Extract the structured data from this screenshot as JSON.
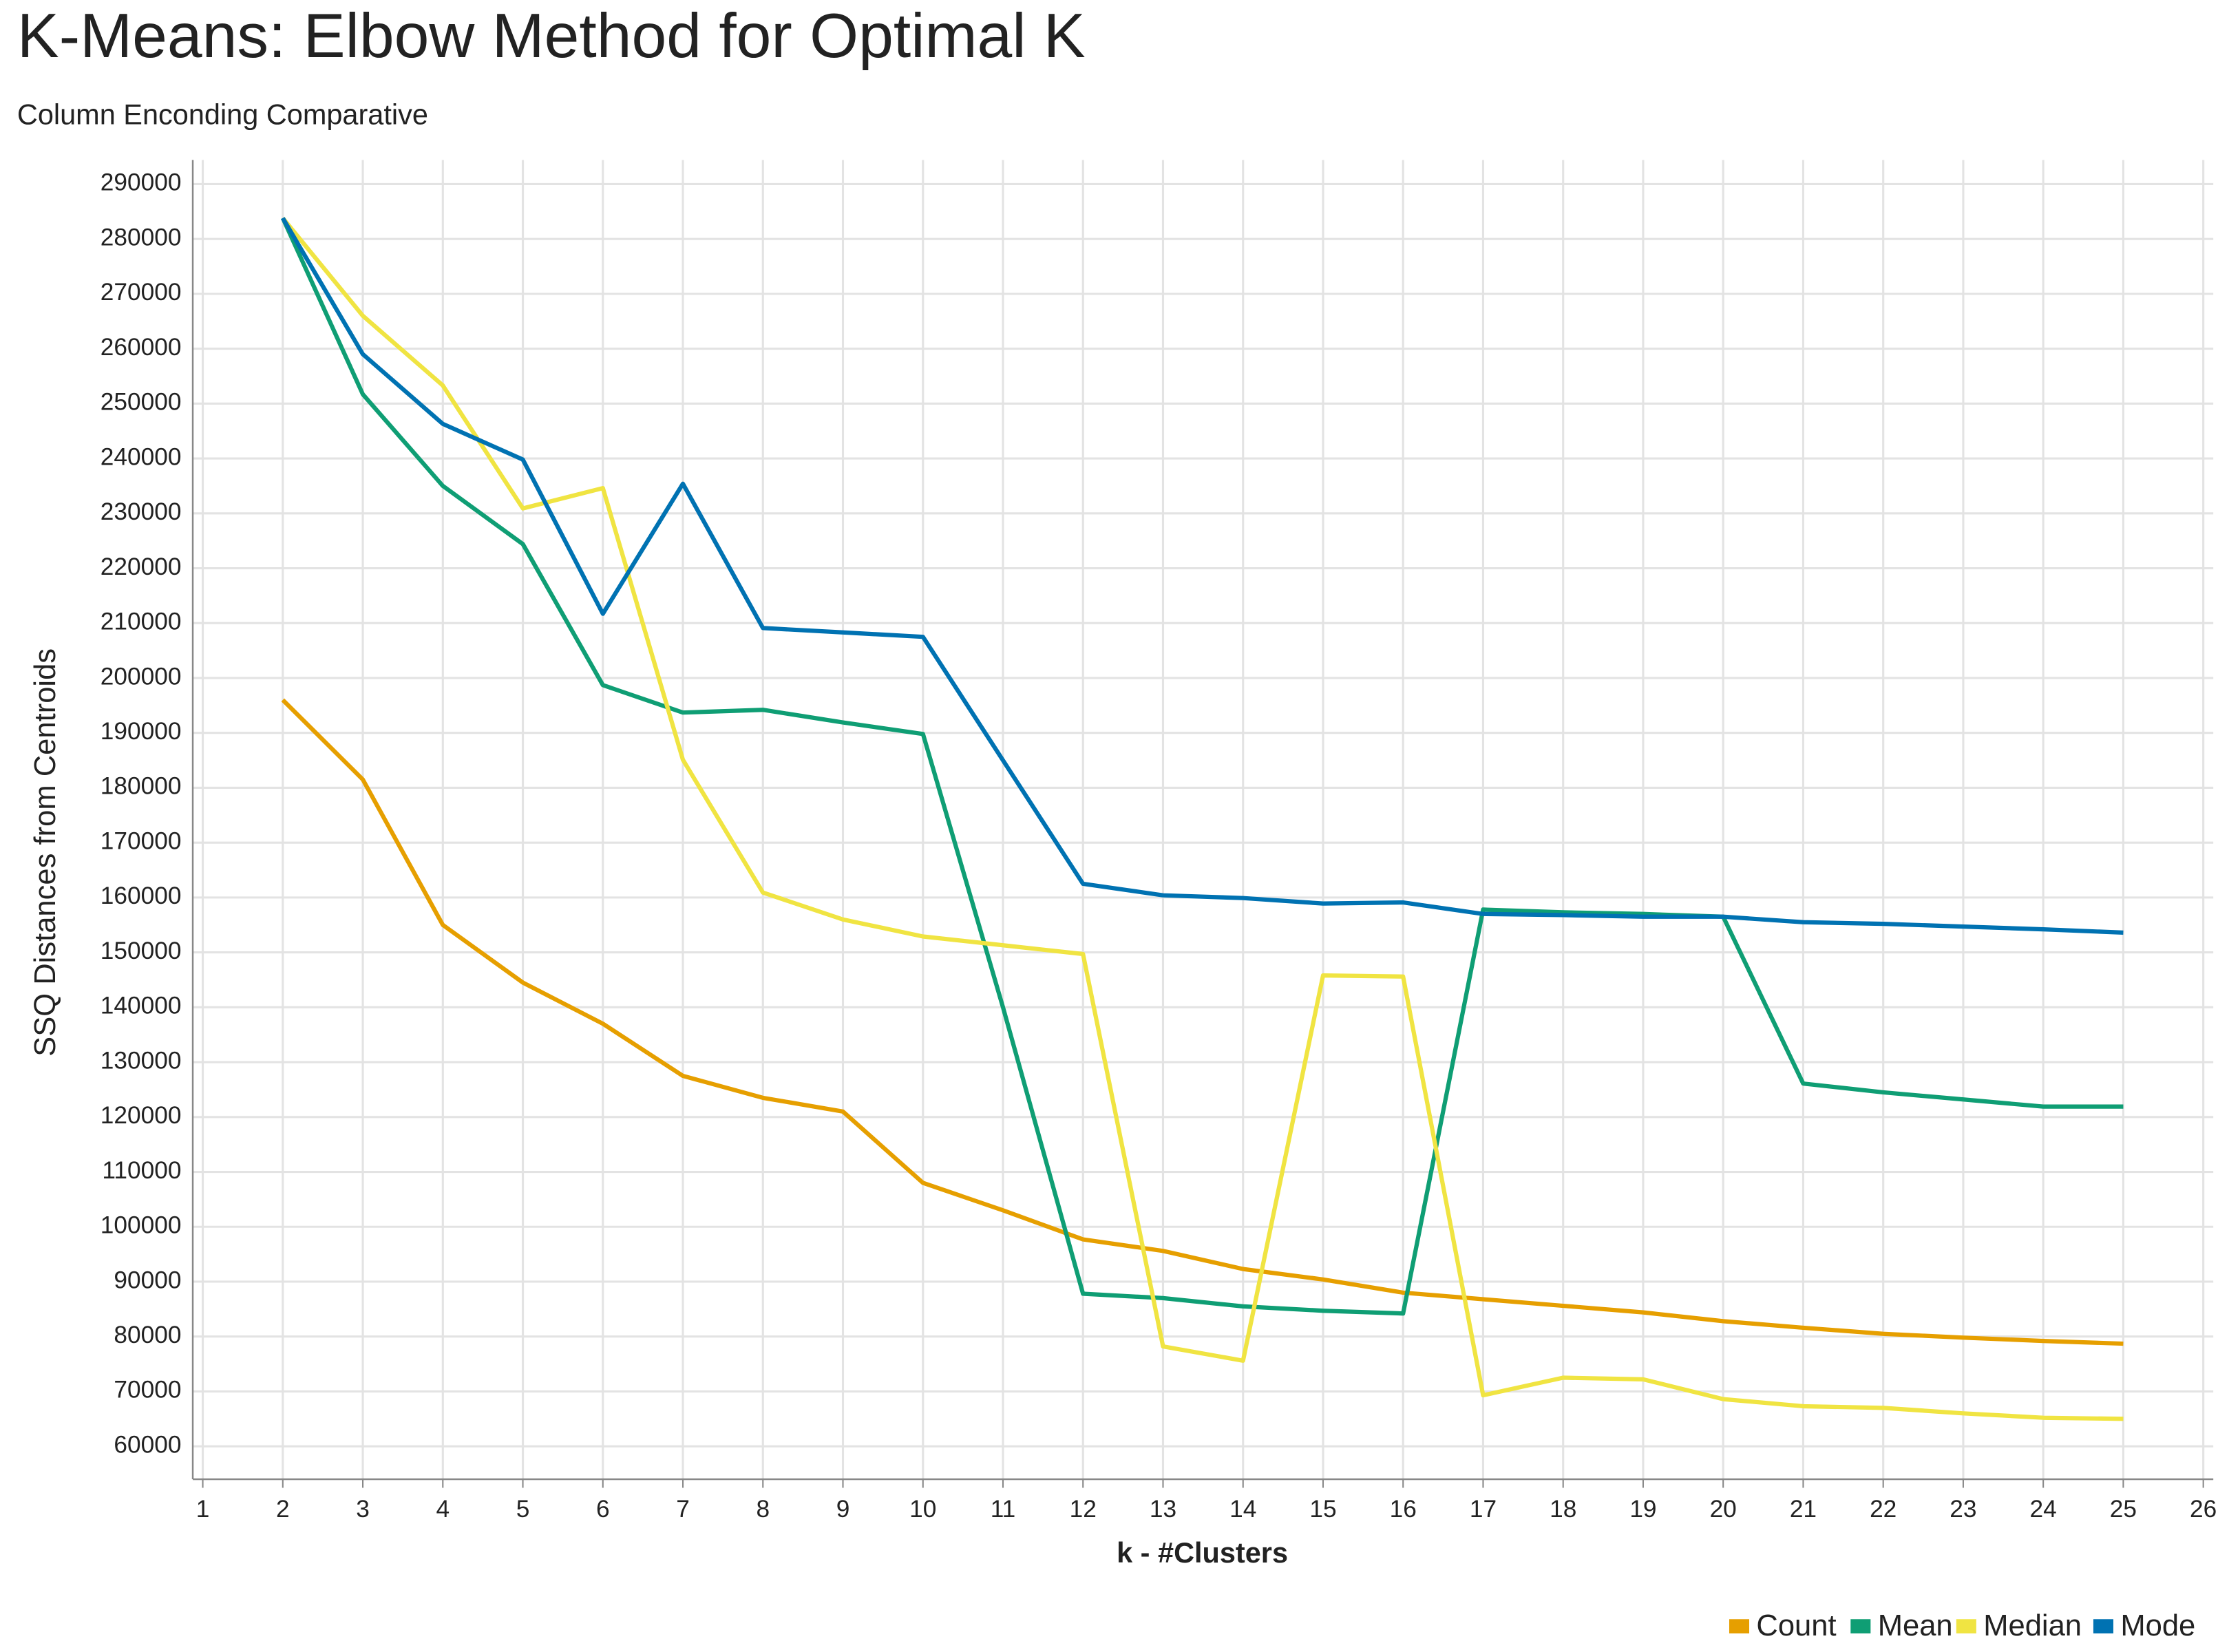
{
  "chart_data": {
    "type": "line",
    "title": "K-Means: Elbow Method for Optimal K",
    "subtitle": "Column Enconding Comparative",
    "x_label": "k - #Clusters",
    "y_label": "SSQ Distances from Centroids",
    "x": [
      2,
      3,
      4,
      5,
      6,
      7,
      8,
      9,
      10,
      11,
      12,
      13,
      14,
      15,
      16,
      17,
      18,
      19,
      20,
      21,
      22,
      23,
      24,
      25
    ],
    "series": [
      {
        "name": "Count",
        "color": "#e69f00",
        "values": [
          196000,
          181500,
          155000,
          144500,
          137000,
          127500,
          123500,
          121000,
          108000,
          103000,
          97700,
          95600,
          92300,
          90400,
          88000,
          86800,
          85600,
          84400,
          82800,
          81600,
          80500,
          79800,
          79200,
          78700
        ]
      },
      {
        "name": "Mean",
        "color": "#0f9e74",
        "values": [
          283800,
          251700,
          235000,
          224400,
          198700,
          193700,
          194200,
          191900,
          189800,
          140000,
          87800,
          87000,
          85500,
          84700,
          84200,
          157800,
          157300,
          157000,
          156500,
          126100,
          124500,
          123200,
          121900,
          121900
        ]
      },
      {
        "name": "Median",
        "color": "#f0e442",
        "values": [
          283800,
          266000,
          253300,
          230900,
          234600,
          185100,
          160900,
          156000,
          152900,
          151300,
          149700,
          78200,
          75600,
          145800,
          145600,
          69300,
          72500,
          72200,
          68600,
          67300,
          67000,
          66000,
          65200,
          65000
        ]
      },
      {
        "name": "Mode",
        "color": "#0072b2",
        "values": [
          283800,
          259000,
          246300,
          239800,
          211700,
          235400,
          209100,
          208300,
          207500,
          185000,
          162500,
          160400,
          159900,
          158900,
          159100,
          157000,
          156800,
          156500,
          156500,
          155500,
          155200,
          154700,
          154200,
          153600
        ]
      }
    ],
    "xlim": [
      0.875,
      26.125
    ],
    "ylim": [
      54000,
      294400
    ],
    "xticks": [
      1,
      2,
      3,
      4,
      5,
      6,
      7,
      8,
      9,
      10,
      11,
      12,
      13,
      14,
      15,
      16,
      17,
      18,
      19,
      20,
      21,
      22,
      23,
      24,
      25,
      26
    ],
    "yticks": [
      60000,
      70000,
      80000,
      90000,
      100000,
      110000,
      120000,
      130000,
      140000,
      150000,
      160000,
      170000,
      180000,
      190000,
      200000,
      210000,
      220000,
      230000,
      240000,
      250000,
      260000,
      270000,
      280000,
      290000
    ],
    "grid": true,
    "legend": "bottom-right"
  }
}
